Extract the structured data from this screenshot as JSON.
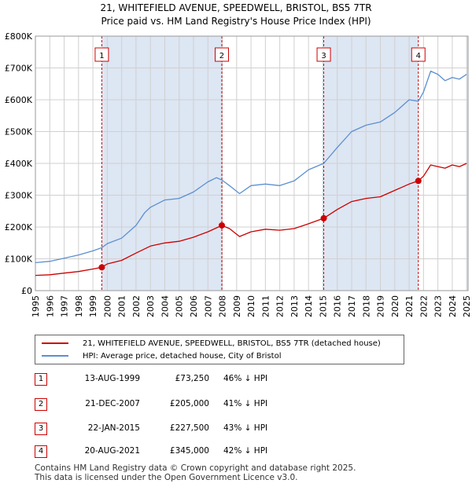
{
  "title_line1": "21, WHITEFIELD AVENUE, SPEEDWELL, BRISTOL, BS5 7TR",
  "title_line2": "Price paid vs. HM Land Registry's House Price Index (HPI)",
  "legend": {
    "property": "21, WHITEFIELD AVENUE, SPEEDWELL, BRISTOL, BS5 7TR (detached house)",
    "hpi": "HPI: Average price, detached house, City of Bristol"
  },
  "colors": {
    "property": "#cc0000",
    "hpi": "#5b8fd0",
    "shade": "#dde6f3",
    "grid": "#d0d0d0",
    "vline": "#cc0000"
  },
  "sales": [
    {
      "num": "1",
      "date": "13-AUG-1999",
      "price": "£73,250",
      "hpi_rel": "46% ↓ HPI",
      "year": 1999.62,
      "value": 73250
    },
    {
      "num": "2",
      "date": "21-DEC-2007",
      "price": "£205,000",
      "hpi_rel": "41% ↓ HPI",
      "year": 2007.97,
      "value": 205000
    },
    {
      "num": "3",
      "date": "22-JAN-2015",
      "price": "£227,500",
      "hpi_rel": "43% ↓ HPI",
      "year": 2015.06,
      "value": 227500
    },
    {
      "num": "4",
      "date": "20-AUG-2021",
      "price": "£345,000",
      "hpi_rel": "42% ↓ HPI",
      "year": 2021.64,
      "value": 345000
    }
  ],
  "footer_line1": "Contains HM Land Registry data © Crown copyright and database right 2025.",
  "footer_line2": "This data is licensed under the Open Government Licence v3.0.",
  "chart_data": {
    "type": "line",
    "title": "21, WHITEFIELD AVENUE, SPEEDWELL, BRISTOL, BS5 7TR — Price paid vs. HM Land Registry's House Price Index (HPI)",
    "xlabel": "",
    "ylabel": "",
    "xlim": [
      1995,
      2025.1
    ],
    "ylim": [
      0,
      800000
    ],
    "y_ticks": [
      {
        "value": 0,
        "label": "£0"
      },
      {
        "value": 100000,
        "label": "£100K"
      },
      {
        "value": 200000,
        "label": "£200K"
      },
      {
        "value": 300000,
        "label": "£300K"
      },
      {
        "value": 400000,
        "label": "£400K"
      },
      {
        "value": 500000,
        "label": "£500K"
      },
      {
        "value": 600000,
        "label": "£600K"
      },
      {
        "value": 700000,
        "label": "£700K"
      },
      {
        "value": 800000,
        "label": "£800K"
      }
    ],
    "x_ticks": [
      "1995",
      "1996",
      "1997",
      "1998",
      "1999",
      "2000",
      "2001",
      "2002",
      "2003",
      "2004",
      "2005",
      "2006",
      "2007",
      "2008",
      "2009",
      "2010",
      "2011",
      "2012",
      "2013",
      "2014",
      "2015",
      "2016",
      "2017",
      "2018",
      "2019",
      "2020",
      "2021",
      "2022",
      "2023",
      "2024",
      "2025"
    ],
    "grid": true,
    "shaded_ranges": [
      [
        1999.62,
        2007.97
      ],
      [
        2015.06,
        2021.64
      ],
      [
        2025.0,
        2025.1
      ]
    ],
    "series": [
      {
        "name": "HPI: Average price, detached house, City of Bristol",
        "x": [
          1995.0,
          1996.0,
          1997.0,
          1998.0,
          1999.0,
          1999.62,
          2000.0,
          2001.0,
          2002.0,
          2002.6,
          2003.0,
          2004.0,
          2005.0,
          2006.0,
          2007.0,
          2007.6,
          2007.97,
          2008.5,
          2009.2,
          2010.0,
          2011.0,
          2012.0,
          2013.0,
          2014.0,
          2015.06,
          2016.0,
          2017.0,
          2018.0,
          2019.0,
          2020.0,
          2021.0,
          2021.64,
          2022.0,
          2022.5,
          2023.0,
          2023.5,
          2024.0,
          2024.5,
          2025.0
        ],
        "values": [
          88000,
          92000,
          102000,
          112000,
          125000,
          135000,
          148000,
          165000,
          205000,
          245000,
          262000,
          285000,
          290000,
          310000,
          342000,
          355000,
          348000,
          330000,
          305000,
          330000,
          335000,
          330000,
          345000,
          380000,
          400000,
          450000,
          500000,
          520000,
          530000,
          560000,
          600000,
          595000,
          625000,
          690000,
          680000,
          660000,
          670000,
          665000,
          680000
        ]
      },
      {
        "name": "21, WHITEFIELD AVENUE, SPEEDWELL, BRISTOL, BS5 7TR (detached house)",
        "x": [
          1995.0,
          1996.0,
          1997.0,
          1998.0,
          1999.0,
          1999.62,
          2000.0,
          2001.0,
          2002.0,
          2003.0,
          2004.0,
          2005.0,
          2006.0,
          2007.0,
          2007.97,
          2008.5,
          2009.2,
          2010.0,
          2011.0,
          2012.0,
          2013.0,
          2014.0,
          2015.06,
          2016.0,
          2017.0,
          2018.0,
          2019.0,
          2020.0,
          2021.0,
          2021.64,
          2022.0,
          2022.5,
          2023.0,
          2023.5,
          2024.0,
          2024.5,
          2025.0
        ],
        "values": [
          48000,
          50000,
          55000,
          60000,
          68000,
          73250,
          84000,
          95000,
          118000,
          140000,
          150000,
          155000,
          168000,
          185000,
          205000,
          195000,
          170000,
          185000,
          193000,
          190000,
          195000,
          210000,
          227500,
          255000,
          280000,
          290000,
          295000,
          315000,
          335000,
          345000,
          360000,
          395000,
          390000,
          385000,
          395000,
          390000,
          400000
        ]
      }
    ]
  }
}
